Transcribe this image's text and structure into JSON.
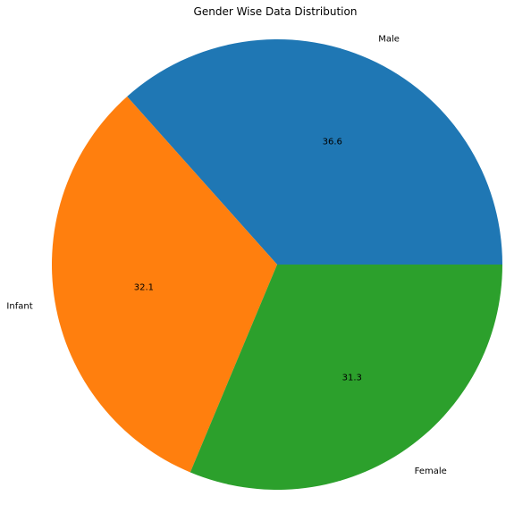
{
  "chart_data": {
    "type": "pie",
    "title": "Gender Wise Data Distribution",
    "categories": [
      "Male",
      "Infant",
      "Female"
    ],
    "values": [
      36.6,
      32.1,
      31.3
    ],
    "value_labels": [
      "36.6",
      "32.1",
      "31.3"
    ],
    "colors": [
      "#1f77b4",
      "#ff7f0e",
      "#2ca02c"
    ],
    "start_angle_deg": 0,
    "direction": "counterclockwise",
    "legend": "none"
  }
}
